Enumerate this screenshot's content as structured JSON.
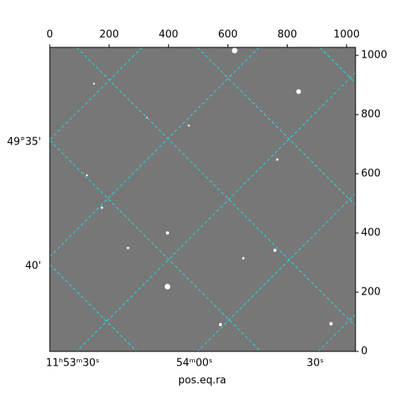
{
  "chart_data": {
    "type": "image",
    "xlabel": "pos.eq.ra",
    "xlim": [
      0,
      1030
    ],
    "xticks": [
      0,
      200,
      400,
      600,
      800,
      1000
    ],
    "ylim": [
      0,
      1027
    ],
    "yticks": [
      0,
      200,
      400,
      600,
      800,
      1000
    ],
    "ra_labels": [
      "11ʰ53ᵐ30ˢ",
      "54ᵐ00ˢ",
      "30ˢ"
    ],
    "dec_labels": [
      "49°35'",
      "40'"
    ]
  }
}
